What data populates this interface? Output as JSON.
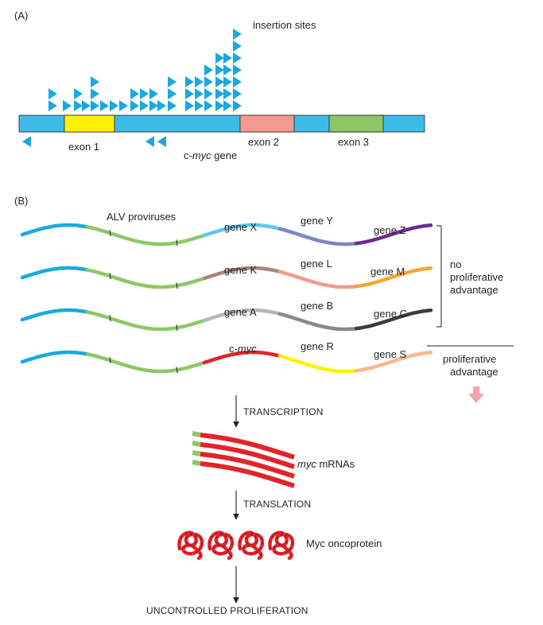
{
  "panel_a": {
    "label": "(A)",
    "insertion_label": "insertion sites",
    "exon_labels": [
      "exon 1",
      "exon 2",
      "exon 3"
    ],
    "gene_prefix": "c-",
    "gene_italic": "myc",
    "gene_suffix": " gene",
    "colors": {
      "gene": "#3dbbe8",
      "exon1": "#fff200",
      "exon2": "#f4998d",
      "exon3": "#8dc765",
      "insertion": "#1aa8e0"
    }
  },
  "panel_b": {
    "label": "(B)",
    "provirus_label": "ALV proviruses",
    "rows": [
      {
        "genes": [
          "gene X",
          "gene Y",
          "gene Z"
        ],
        "colors": [
          "#5bc8ec",
          "#7b86c6",
          "#6a2d91"
        ]
      },
      {
        "genes": [
          "gene K",
          "gene L",
          "gene M"
        ],
        "colors": [
          "#a8857a",
          "#f4998d",
          "#f7a531"
        ]
      },
      {
        "genes": [
          "gene A",
          "gene B",
          "gene C"
        ],
        "colors": [
          "#b5b7b9",
          "#868a8c",
          "#3a3c3e"
        ]
      },
      {
        "genes": [
          "c-myc",
          "gene R",
          "gene S"
        ],
        "colors": [
          "#e2232a",
          "#fff200",
          "#f9b98b"
        ]
      }
    ],
    "host_dna_color": "#19a9e1",
    "provirus_color": "#8dc765",
    "no_advantage": [
      "no",
      "proliferative",
      "advantage"
    ],
    "advantage": [
      "proliferative",
      "advantage"
    ]
  },
  "flow": {
    "transcription": "TRANSCRIPTION",
    "mrna_italic": "myc",
    "mrna_suffix": " mRNAs",
    "translation": "TRANSLATION",
    "protein": "Myc oncoprotein",
    "outcome": "UNCONTROLLED PROLIFERATION"
  }
}
